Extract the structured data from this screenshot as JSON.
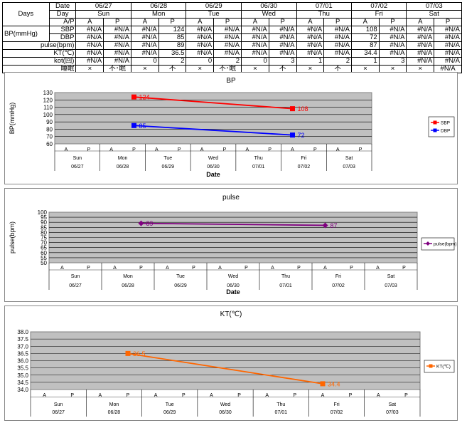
{
  "table": {
    "row_labels": {
      "days": "Days",
      "date": "Date",
      "day": "Day",
      "ap": "A/P",
      "bp": "BP(mmHg)",
      "sbp": "SBP",
      "dbp": "DBP",
      "pulse": "pulse(bpm)",
      "kt": "KT(℃)",
      "kot": "kot(回)",
      "sleep": "睡眠"
    },
    "dates": [
      "06/27",
      "06/28",
      "06/29",
      "06/30",
      "07/01",
      "07/02",
      "07/03"
    ],
    "days": [
      "Sun",
      "Mon",
      "Tue",
      "Wed",
      "Thu",
      "Fri",
      "Sat"
    ],
    "ap": [
      "A",
      "P",
      "A",
      "P",
      "A",
      "P",
      "A",
      "P",
      "A",
      "P",
      "A",
      "P",
      "A",
      "P"
    ],
    "rows": {
      "sbp": [
        "#N/A",
        "#N/A",
        "#N/A",
        "124",
        "#N/A",
        "#N/A",
        "#N/A",
        "#N/A",
        "#N/A",
        "#N/A",
        "108",
        "#N/A",
        "#N/A",
        "#N/A"
      ],
      "dbp": [
        "#N/A",
        "#N/A",
        "#N/A",
        "85",
        "#N/A",
        "#N/A",
        "#N/A",
        "#N/A",
        "#N/A",
        "#N/A",
        "72",
        "#N/A",
        "#N/A",
        "#N/A"
      ],
      "pulse": [
        "#N/A",
        "#N/A",
        "#N/A",
        "89",
        "#N/A",
        "#N/A",
        "#N/A",
        "#N/A",
        "#N/A",
        "#N/A",
        "87",
        "#N/A",
        "#N/A",
        "#N/A"
      ],
      "kt": [
        "#N/A",
        "#N/A",
        "#N/A",
        "36.5",
        "#N/A",
        "#N/A",
        "#N/A",
        "#N/A",
        "#N/A",
        "#N/A",
        "34.4",
        "#N/A",
        "#N/A",
        "#N/A"
      ],
      "kot": [
        "#N/A",
        "#N/A",
        "0",
        "2",
        "0",
        "2",
        "0",
        "3",
        "1",
        "2",
        "1",
        "3",
        "#N/A",
        "#N/A"
      ],
      "sleep": [
        "×",
        "不･眠",
        "×",
        "不",
        "×",
        "不･眠",
        "×",
        "不",
        "×",
        "不",
        "×",
        "×",
        "×",
        "#N/A"
      ]
    }
  },
  "chart_data": [
    {
      "type": "line",
      "title": "BP",
      "ylabel": "BP(mmHg)",
      "xlabel": "Date",
      "ylim": [
        60,
        130
      ],
      "yticks": [
        60,
        70,
        80,
        90,
        100,
        110,
        120,
        130
      ],
      "grid": true,
      "legend": "right",
      "slot_labels": [
        "A",
        "P",
        "A",
        "P",
        "A",
        "P",
        "A",
        "P",
        "A",
        "P",
        "A",
        "P",
        "A",
        "P"
      ],
      "days": [
        "Sun",
        "Mon",
        "Tue",
        "Wed",
        "Thu",
        "Fri",
        "Sat"
      ],
      "dates": [
        "06/27",
        "06/28",
        "06/29",
        "06/30",
        "07/01",
        "07/02",
        "07/03"
      ],
      "series": [
        {
          "name": "SBP",
          "color": "#ff0000",
          "points": [
            {
              "slot": 3,
              "value": 124
            },
            {
              "slot": 10,
              "value": 108
            }
          ]
        },
        {
          "name": "DBP",
          "color": "#0000ff",
          "points": [
            {
              "slot": 3,
              "value": 85
            },
            {
              "slot": 10,
              "value": 72
            }
          ]
        }
      ]
    },
    {
      "type": "line",
      "title": "pulse",
      "ylabel": "pulse(bpm)",
      "xlabel": "Date",
      "ylim": [
        50,
        100
      ],
      "yticks": [
        50,
        55,
        60,
        65,
        70,
        75,
        80,
        85,
        90,
        95,
        100
      ],
      "grid": true,
      "legend": "right",
      "slot_labels": [
        "A",
        "P",
        "A",
        "P",
        "A",
        "P",
        "A",
        "P",
        "A",
        "P",
        "A",
        "P",
        "A",
        "P"
      ],
      "days": [
        "Sun",
        "Mon",
        "Tue",
        "Wed",
        "Thu",
        "Fri",
        "Sat"
      ],
      "dates": [
        "06/27",
        "06/28",
        "06/29",
        "06/30",
        "07/01",
        "07/02",
        "07/03"
      ],
      "series": [
        {
          "name": "pulse(bpm)",
          "color": "#800080",
          "marker": "diamond",
          "points": [
            {
              "slot": 3,
              "value": 89
            },
            {
              "slot": 10,
              "value": 87
            }
          ]
        }
      ]
    },
    {
      "type": "line",
      "title": "KT(℃)",
      "ylabel": "",
      "xlabel": "",
      "ylim": [
        34.0,
        38.0
      ],
      "yticks": [
        "34.0",
        "34.5",
        "35.0",
        "35.5",
        "36.0",
        "36.5",
        "37.0",
        "37.5",
        "38.0"
      ],
      "grid": true,
      "legend": "right",
      "slot_labels": [
        "A",
        "P",
        "A",
        "P",
        "A",
        "P",
        "A",
        "P",
        "A",
        "P",
        "A",
        "P",
        "A",
        "P"
      ],
      "days": [
        "Sun",
        "Mon",
        "Tue",
        "Wed",
        "Thu",
        "Fri",
        "Sat"
      ],
      "dates": [
        "06/27",
        "06/28",
        "06/29",
        "06/30",
        "07/01",
        "07/02",
        "07/03"
      ],
      "series": [
        {
          "name": "KT(℃)",
          "color": "#ff6600",
          "points": [
            {
              "slot": 3,
              "value": 36.5
            },
            {
              "slot": 10,
              "value": 34.4
            }
          ]
        }
      ]
    }
  ]
}
